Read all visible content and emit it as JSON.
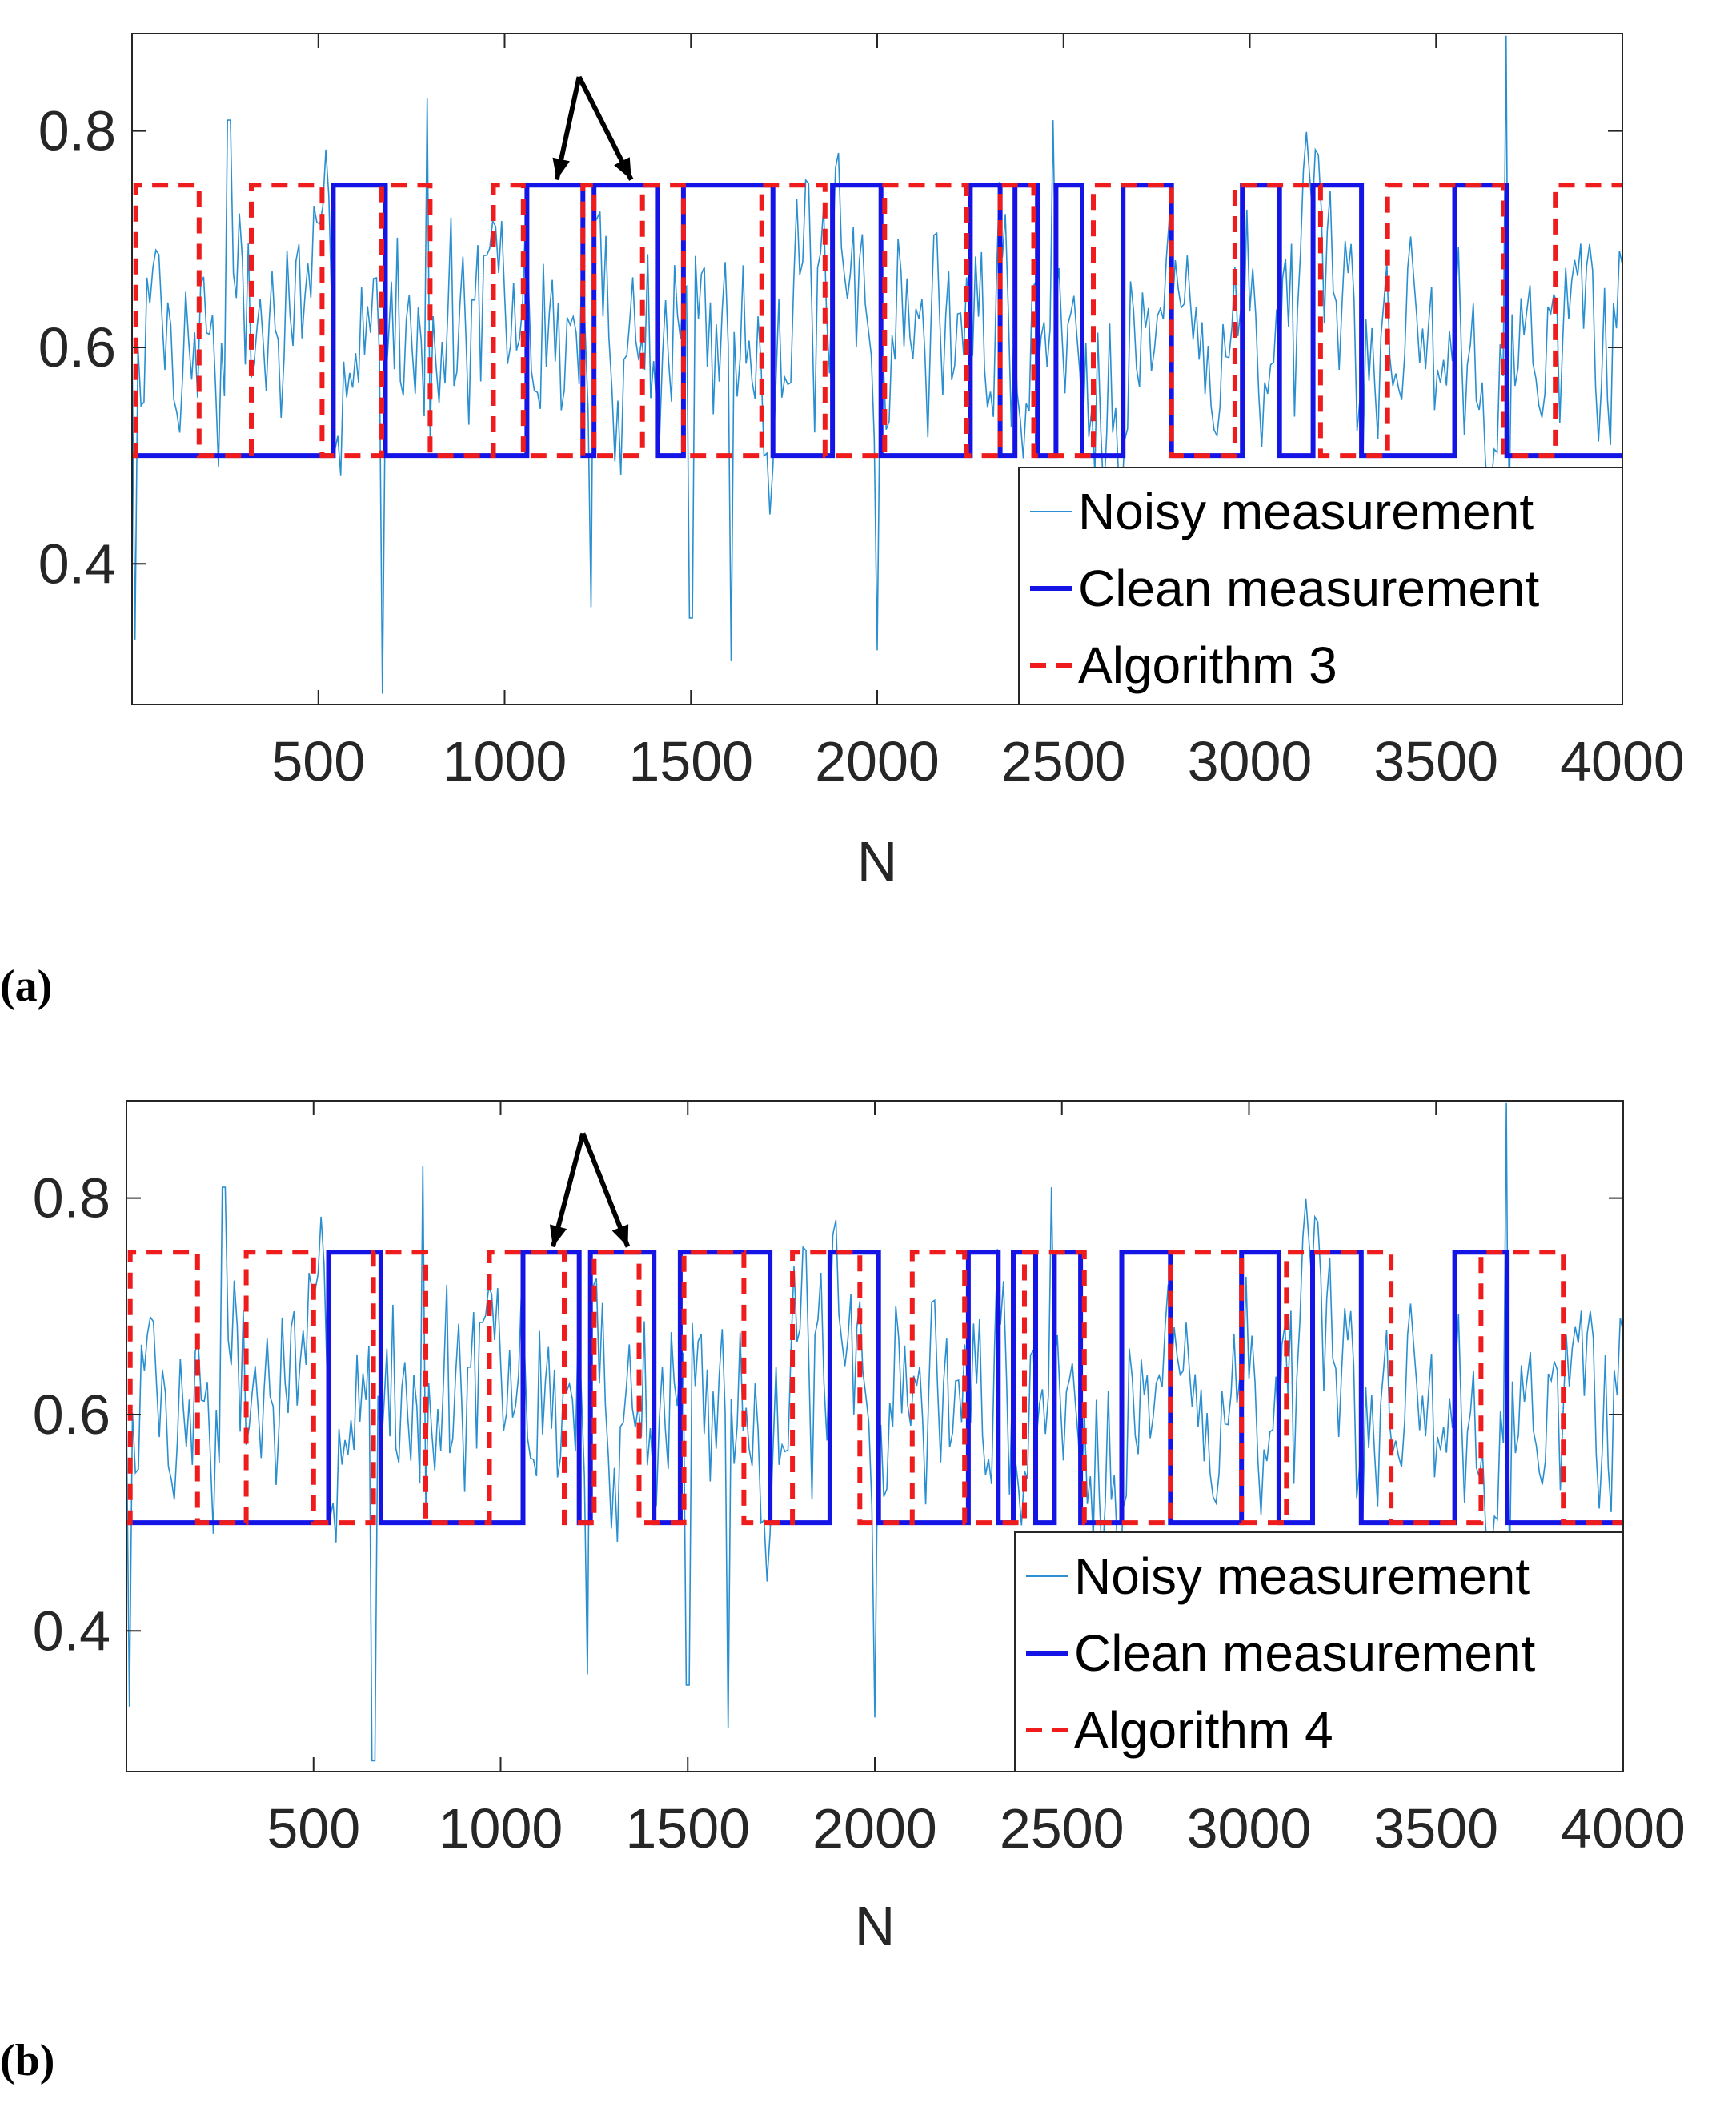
{
  "colors": {
    "noisy": "#2a8fd0",
    "clean": "#1414e6",
    "algorithm": "#ee1c1c",
    "axis": "#262626",
    "annotation": "#000000"
  },
  "chart_data": [
    {
      "type": "line",
      "panel_label": "(a)",
      "xlabel": "N",
      "ylabel": "",
      "xlim": [
        0,
        4000
      ],
      "ylim": [
        0.27,
        0.89
      ],
      "xticks": [
        500,
        1000,
        1500,
        2000,
        2500,
        3000,
        3500,
        4000
      ],
      "xtick_labels": [
        "500",
        "1000",
        "1500",
        "2000",
        "2500",
        "3000",
        "3500",
        "4000"
      ],
      "yticks": [
        0.4,
        0.6,
        0.8
      ],
      "ytick_labels": [
        "0.4",
        "0.6",
        "0.8"
      ],
      "legend": [
        "Noisy measurement",
        "Clean measurement",
        "Algorithm 3"
      ],
      "legend_position": "bottom-right",
      "annotation": {
        "type": "double-arrow",
        "apex": [
          1200,
          0.85
        ],
        "targets": [
          [
            1140,
            0.755
          ],
          [
            1340,
            0.755
          ]
        ]
      },
      "series": [
        {
          "name": "Clean measurement",
          "style": "solid",
          "x": [
            0,
            540,
            540,
            680,
            680,
            1060,
            1060,
            1210,
            1210,
            1240,
            1240,
            1410,
            1410,
            1480,
            1480,
            1720,
            1720,
            1880,
            1880,
            2010,
            2010,
            2250,
            2250,
            2330,
            2330,
            2370,
            2370,
            2430,
            2430,
            2480,
            2480,
            2550,
            2550,
            2660,
            2660,
            2790,
            2790,
            2980,
            2980,
            3080,
            3080,
            3170,
            3170,
            3300,
            3300,
            3550,
            3550,
            3690,
            3690,
            4000
          ],
          "y": [
            0.5,
            0.5,
            0.75,
            0.75,
            0.5,
            0.5,
            0.75,
            0.75,
            0.5,
            0.5,
            0.75,
            0.75,
            0.5,
            0.5,
            0.75,
            0.75,
            0.5,
            0.5,
            0.75,
            0.75,
            0.5,
            0.5,
            0.75,
            0.75,
            0.5,
            0.5,
            0.75,
            0.75,
            0.5,
            0.5,
            0.75,
            0.75,
            0.5,
            0.5,
            0.75,
            0.75,
            0.5,
            0.5,
            0.75,
            0.75,
            0.5,
            0.5,
            0.75,
            0.75,
            0.5,
            0.5,
            0.75,
            0.75,
            0.5,
            0.5
          ]
        },
        {
          "name": "Algorithm 3",
          "style": "dashed",
          "x": [
            0,
            10,
            10,
            180,
            180,
            320,
            320,
            510,
            510,
            670,
            670,
            800,
            800,
            970,
            970,
            1050,
            1050,
            1210,
            1210,
            1240,
            1240,
            1370,
            1370,
            1480,
            1480,
            1690,
            1690,
            1860,
            1860,
            2020,
            2020,
            2240,
            2240,
            2330,
            2330,
            2420,
            2420,
            2580,
            2580,
            2790,
            2790,
            2960,
            2960,
            3190,
            3190,
            3370,
            3370,
            3680,
            3680,
            3820,
            3820,
            4000
          ],
          "y": [
            0.5,
            0.5,
            0.75,
            0.75,
            0.5,
            0.5,
            0.75,
            0.75,
            0.5,
            0.5,
            0.75,
            0.75,
            0.5,
            0.5,
            0.75,
            0.75,
            0.5,
            0.5,
            0.75,
            0.75,
            0.5,
            0.5,
            0.75,
            0.75,
            0.5,
            0.5,
            0.75,
            0.75,
            0.5,
            0.5,
            0.75,
            0.75,
            0.5,
            0.5,
            0.75,
            0.75,
            0.5,
            0.5,
            0.75,
            0.75,
            0.5,
            0.5,
            0.75,
            0.75,
            0.5,
            0.5,
            0.75,
            0.75,
            0.5,
            0.5,
            0.75,
            0.75
          ]
        },
        {
          "name": "Noisy measurement",
          "style": "thin",
          "generated": "pseudo-random fluctuation around 0.62 with spikes; key extrema below",
          "extrema": [
            [
              8,
              0.33
            ],
            [
              260,
              0.81
            ],
            [
              670,
              0.28
            ],
            [
              790,
              0.83
            ],
            [
              1230,
              0.36
            ],
            [
              1500,
              0.35
            ],
            [
              1610,
              0.31
            ],
            [
              2000,
              0.32
            ],
            [
              2470,
              0.81
            ],
            [
              3690,
              0.89
            ]
          ]
        }
      ]
    },
    {
      "type": "line",
      "panel_label": "(b)",
      "xlabel": "N",
      "ylabel": "",
      "xlim": [
        0,
        4000
      ],
      "ylim": [
        0.27,
        0.89
      ],
      "xticks": [
        500,
        1000,
        1500,
        2000,
        2500,
        3000,
        3500,
        4000
      ],
      "xtick_labels": [
        "500",
        "1000",
        "1500",
        "2000",
        "2500",
        "3000",
        "3500",
        "4000"
      ],
      "yticks": [
        0.4,
        0.6,
        0.8
      ],
      "ytick_labels": [
        "0.4",
        "0.6",
        "0.8"
      ],
      "legend": [
        "Noisy measurement",
        "Clean measurement",
        "Algorithm 4"
      ],
      "legend_position": "bottom-right",
      "annotation": {
        "type": "double-arrow",
        "apex": [
          1220,
          0.86
        ],
        "targets": [
          [
            1140,
            0.755
          ],
          [
            1340,
            0.755
          ]
        ]
      },
      "series": [
        {
          "name": "Clean measurement",
          "style": "solid",
          "x": [
            0,
            540,
            540,
            680,
            680,
            1060,
            1060,
            1210,
            1210,
            1240,
            1240,
            1410,
            1410,
            1480,
            1480,
            1720,
            1720,
            1880,
            1880,
            2010,
            2010,
            2250,
            2250,
            2330,
            2330,
            2370,
            2370,
            2430,
            2430,
            2480,
            2480,
            2550,
            2550,
            2660,
            2660,
            2790,
            2790,
            2980,
            2980,
            3080,
            3080,
            3170,
            3170,
            3300,
            3300,
            3550,
            3550,
            3690,
            3690,
            4000
          ],
          "y": [
            0.5,
            0.5,
            0.75,
            0.75,
            0.5,
            0.5,
            0.75,
            0.75,
            0.5,
            0.5,
            0.75,
            0.75,
            0.5,
            0.5,
            0.75,
            0.75,
            0.5,
            0.5,
            0.75,
            0.75,
            0.5,
            0.5,
            0.75,
            0.75,
            0.5,
            0.5,
            0.75,
            0.75,
            0.5,
            0.5,
            0.75,
            0.75,
            0.5,
            0.5,
            0.75,
            0.75,
            0.5,
            0.5,
            0.75,
            0.75,
            0.5,
            0.5,
            0.75,
            0.75,
            0.5,
            0.5,
            0.75,
            0.75,
            0.5,
            0.5
          ]
        },
        {
          "name": "Algorithm 4",
          "style": "dashed",
          "x": [
            0,
            10,
            10,
            190,
            190,
            320,
            320,
            500,
            500,
            660,
            660,
            800,
            800,
            970,
            970,
            1170,
            1170,
            1250,
            1250,
            1370,
            1370,
            1490,
            1490,
            1650,
            1650,
            1780,
            1780,
            1960,
            1960,
            2100,
            2100,
            2240,
            2240,
            2400,
            2400,
            2560,
            2560,
            2790,
            2790,
            2980,
            2980,
            3100,
            3100,
            3380,
            3380,
            3620,
            3620,
            3840,
            3840,
            4000
          ],
          "y": [
            0.5,
            0.5,
            0.75,
            0.75,
            0.5,
            0.5,
            0.75,
            0.75,
            0.5,
            0.5,
            0.75,
            0.75,
            0.5,
            0.5,
            0.75,
            0.75,
            0.5,
            0.5,
            0.75,
            0.75,
            0.5,
            0.5,
            0.75,
            0.75,
            0.5,
            0.5,
            0.75,
            0.75,
            0.5,
            0.5,
            0.75,
            0.75,
            0.5,
            0.5,
            0.75,
            0.75,
            0.5,
            0.5,
            0.75,
            0.75,
            0.5,
            0.5,
            0.75,
            0.75,
            0.5,
            0.5,
            0.75,
            0.75,
            0.5,
            0.5
          ]
        },
        {
          "name": "Noisy measurement",
          "style": "thin",
          "generated": "pseudo-random fluctuation around 0.62 with spikes; key extrema below",
          "extrema": [
            [
              8,
              0.33
            ],
            [
              260,
              0.81
            ],
            [
              660,
              0.28
            ],
            [
              790,
              0.83
            ],
            [
              1230,
              0.36
            ],
            [
              1500,
              0.35
            ],
            [
              1610,
              0.31
            ],
            [
              2000,
              0.32
            ],
            [
              2470,
              0.81
            ],
            [
              3690,
              0.89
            ]
          ]
        }
      ]
    }
  ]
}
